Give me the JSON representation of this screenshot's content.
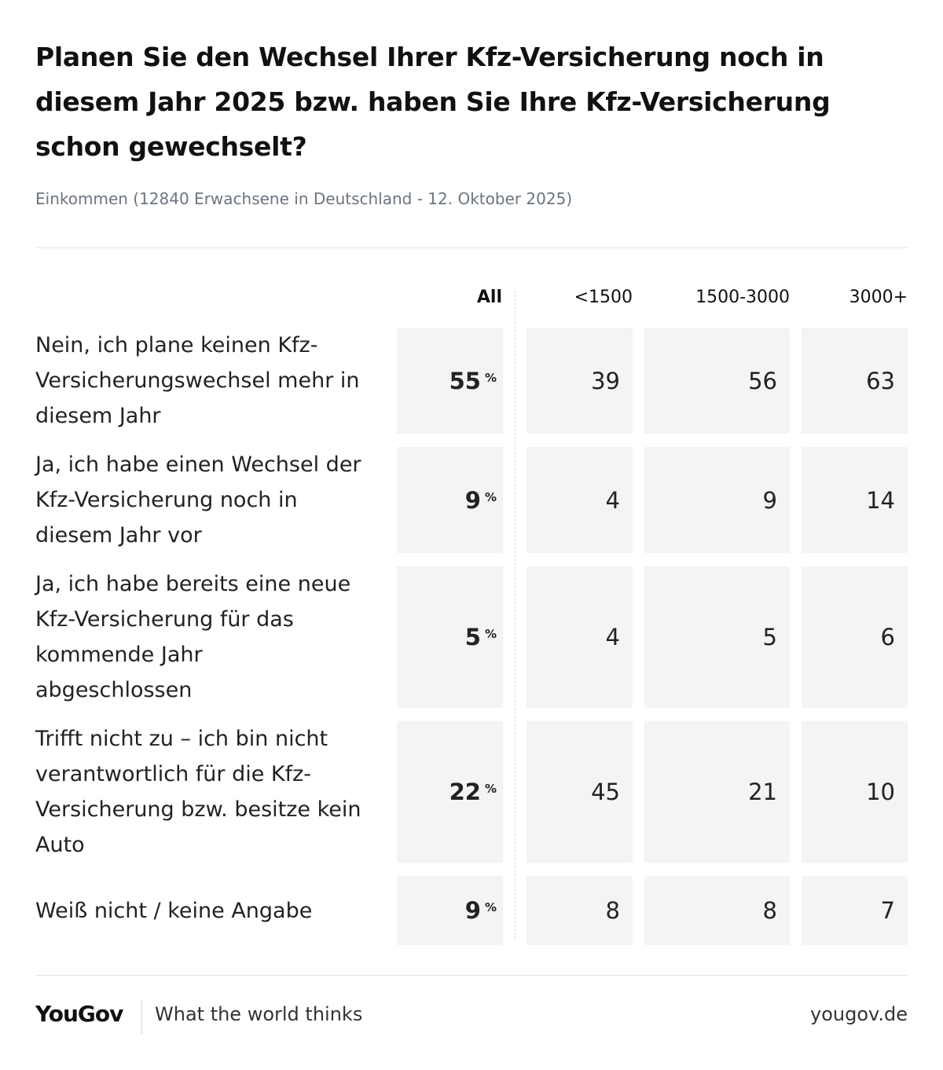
{
  "header": {
    "title": "Planen Sie den Wechsel Ihrer Kfz-Versicherung noch in diesem Jahr 2025 bzw. haben Sie Ihre Kfz-Versicherung schon gewechselt?",
    "subtitle": "Einkommen (12840 Erwachsene in Deutschland - 12. Oktober 2025)"
  },
  "table": {
    "columns": [
      "All",
      "<1500",
      "1500-3000",
      "3000+"
    ],
    "unit": "%",
    "rows": [
      {
        "label": "Nein, ich plane keinen Kfz-Versicherungswechsel mehr in diesem Jahr",
        "values": [
          55,
          39,
          56,
          63
        ]
      },
      {
        "label": "Ja, ich habe einen Wechsel der Kfz-Versicherung noch in diesem Jahr vor",
        "values": [
          9,
          4,
          9,
          14
        ]
      },
      {
        "label": "Ja, ich habe bereits eine neue Kfz-Versicherung für das kommende Jahr abgeschlossen",
        "values": [
          5,
          4,
          5,
          6
        ]
      },
      {
        "label": "Trifft nicht zu – ich bin nicht verantwortlich für die Kfz-Versicherung bzw. besitze kein Auto",
        "values": [
          22,
          45,
          21,
          10
        ]
      },
      {
        "label": "Weiß nicht / keine Angabe",
        "values": [
          9,
          8,
          8,
          7
        ]
      }
    ]
  },
  "footer": {
    "brand": "YouGov",
    "tagline": "What the world thinks",
    "url": "yougov.de"
  }
}
